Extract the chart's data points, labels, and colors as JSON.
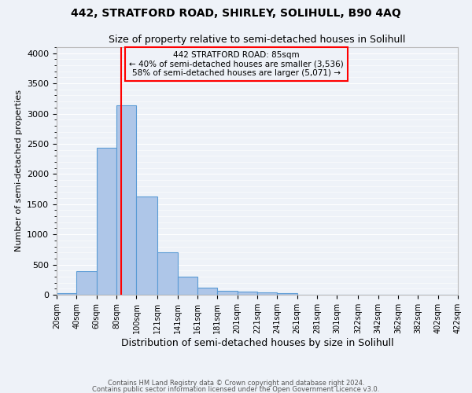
{
  "title1": "442, STRATFORD ROAD, SHIRLEY, SOLIHULL, B90 4AQ",
  "title2": "Size of property relative to semi-detached houses in Solihull",
  "xlabel": "Distribution of semi-detached houses by size in Solihull",
  "ylabel": "Number of semi-detached properties",
  "footnote1": "Contains HM Land Registry data © Crown copyright and database right 2024.",
  "footnote2": "Contains public sector information licensed under the Open Government Licence v3.0.",
  "bin_edges": [
    20,
    40,
    60,
    80,
    100,
    121,
    141,
    161,
    181,
    201,
    221,
    241,
    261,
    281,
    301,
    322,
    342,
    362,
    382,
    402,
    422
  ],
  "bar_heights": [
    30,
    390,
    2440,
    3140,
    1630,
    700,
    295,
    120,
    70,
    55,
    35,
    20,
    0,
    0,
    0,
    0,
    0,
    0,
    0,
    0
  ],
  "bar_color": "#aec6e8",
  "bar_edge_color": "#5b9bd5",
  "property_size": 85,
  "property_label": "442 STRATFORD ROAD: 85sqm",
  "smaller_pct": "40%",
  "smaller_count": "3,536",
  "larger_pct": "58%",
  "larger_count": "5,071",
  "vline_color": "red",
  "annotation_box_edge": "red",
  "ylim": [
    0,
    4100
  ],
  "yticks": [
    0,
    500,
    1000,
    1500,
    2000,
    2500,
    3000,
    3500,
    4000
  ],
  "tick_labels": [
    "20sqm",
    "40sqm",
    "60sqm",
    "80sqm",
    "100sqm",
    "121sqm",
    "141sqm",
    "161sqm",
    "181sqm",
    "201sqm",
    "221sqm",
    "241sqm",
    "261sqm",
    "281sqm",
    "301sqm",
    "322sqm",
    "342sqm",
    "362sqm",
    "382sqm",
    "402sqm",
    "422sqm"
  ],
  "background_color": "#eef2f8",
  "grid_color": "#ffffff",
  "title1_fontsize": 10,
  "title2_fontsize": 9
}
